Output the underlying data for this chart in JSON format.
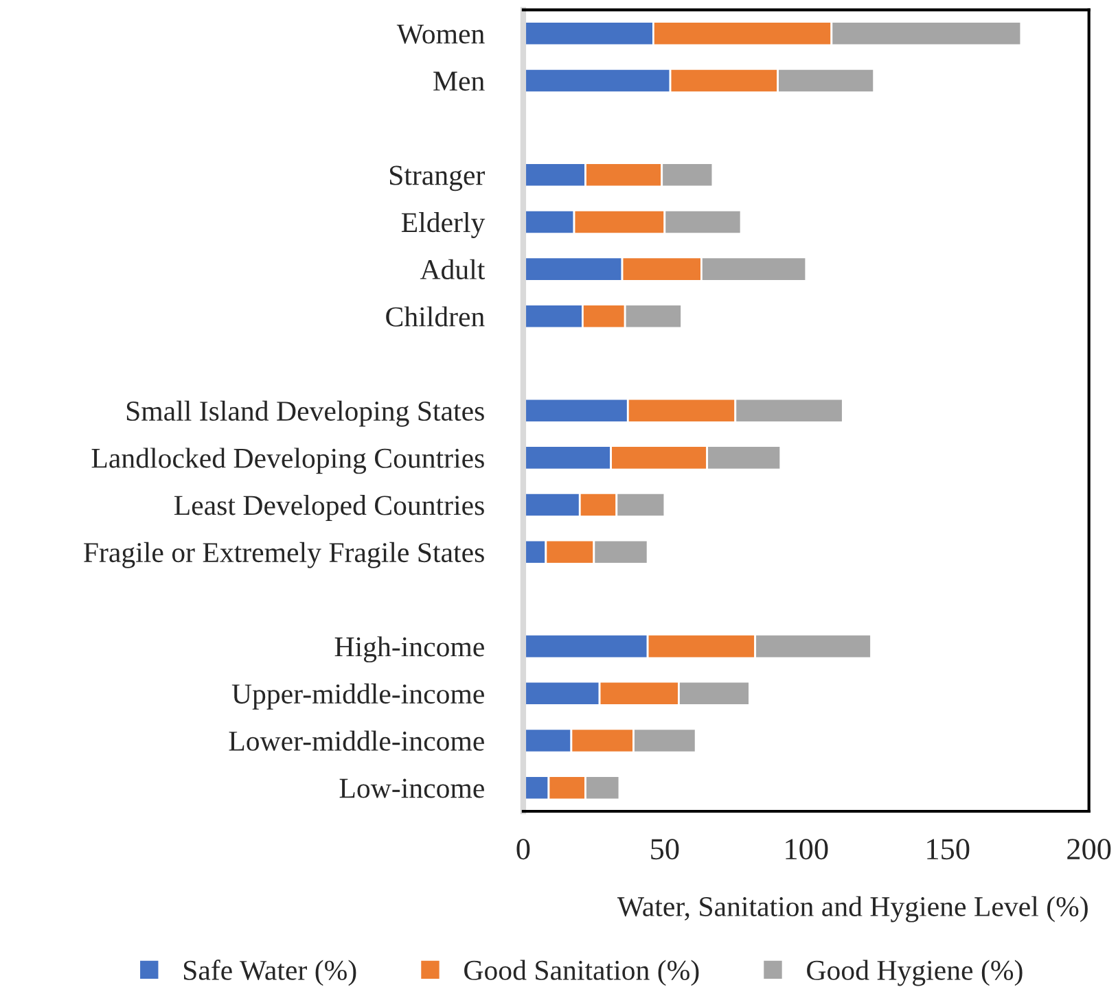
{
  "chart_data": {
    "type": "bar",
    "orientation": "horizontal",
    "stacked": true,
    "categories": [
      "Women",
      "Men",
      null,
      "Stranger",
      "Elderly",
      "Adult",
      "Children",
      null,
      "Small Island Developing States",
      "Landlocked Developing Countries",
      "Least Developed Countries",
      "Fragile or Extremely Fragile States",
      null,
      "High-income",
      "Upper-middle-income",
      "Lower-middle-income",
      "Low-income"
    ],
    "series": [
      {
        "name": "Safe Water (%)",
        "color": "#4472c4",
        "values": [
          46,
          52,
          null,
          22,
          18,
          35,
          21,
          null,
          37,
          31,
          20,
          8,
          null,
          44,
          27,
          17,
          9
        ]
      },
      {
        "name": "Good Sanitation (%)",
        "color": "#ed7d31",
        "values": [
          63,
          38,
          null,
          27,
          32,
          28,
          15,
          null,
          38,
          34,
          13,
          17,
          null,
          38,
          28,
          22,
          13
        ]
      },
      {
        "name": "Good Hygiene (%)",
        "color": "#a5a5a5",
        "values": [
          67,
          34,
          null,
          18,
          27,
          37,
          20,
          null,
          38,
          26,
          17,
          19,
          null,
          41,
          25,
          22,
          12
        ]
      }
    ],
    "xlabel": "Water, Sanitation and Hygiene Level (%)",
    "xlim": [
      0,
      200
    ],
    "xticks": [
      0,
      50,
      100,
      150,
      200
    ],
    "grid": false,
    "legend": "bottom"
  }
}
